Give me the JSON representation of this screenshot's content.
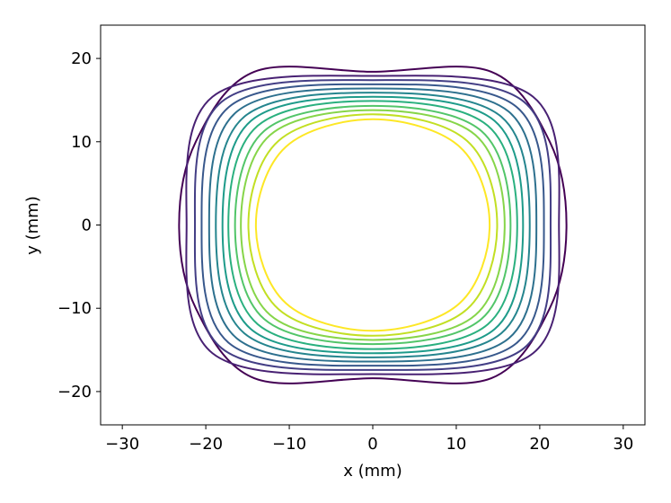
{
  "chart_data": {
    "type": "contour",
    "xlabel": "x (mm)",
    "ylabel": "y (mm)",
    "xlim": [
      -32.6,
      32.6
    ],
    "ylim": [
      -24,
      24
    ],
    "xticks": [
      {
        "value": -30,
        "label": "−30"
      },
      {
        "value": -20,
        "label": "−20"
      },
      {
        "value": -10,
        "label": "−10"
      },
      0,
      10,
      20,
      30
    ],
    "yticks": [
      {
        "value": -20,
        "label": "−20"
      },
      {
        "value": -10,
        "label": "−10"
      },
      0,
      10,
      20
    ],
    "series": [
      {
        "color": "#440154",
        "x": [
          23.2,
          21.2,
          14.2,
          0,
          -14.2,
          -21.2,
          -23.2,
          -21.2,
          -14.2,
          0,
          14.2,
          21.2
        ],
        "y": [
          0,
          10,
          18.4,
          18.4,
          18.4,
          10,
          0,
          -10,
          -18.4,
          -18.4,
          -18.4,
          -10
        ]
      },
      {
        "color": "#482173",
        "x": [
          22.3,
          19.2,
          0,
          -19.2,
          -22.3,
          -19.2,
          0,
          19.2
        ],
        "y": [
          0,
          15.4,
          17.9,
          15.4,
          0,
          -15.4,
          -17.9,
          -15.4
        ]
      },
      {
        "color": "#433e85",
        "x": [
          21.3,
          18.1,
          0,
          -18.1,
          -21.3,
          -18.1,
          0,
          18.1
        ],
        "y": [
          0,
          14.8,
          17.4,
          14.8,
          0,
          -14.8,
          -17.4,
          -14.8
        ]
      },
      {
        "color": "#38588c",
        "x": [
          20.5,
          17.2,
          0,
          -17.2,
          -20.5,
          -17.2,
          0,
          17.2
        ],
        "y": [
          0,
          14.2,
          16.9,
          14.2,
          0,
          -14.2,
          -16.9,
          -14.2
        ]
      },
      {
        "color": "#2d708e",
        "x": [
          19.6,
          16.3,
          0,
          -16.3,
          -19.6,
          -16.3,
          0,
          16.3
        ],
        "y": [
          0,
          13.6,
          16.4,
          13.6,
          0,
          -13.6,
          -16.4,
          -13.6
        ]
      },
      {
        "color": "#25858e",
        "x": [
          18.8,
          15.4,
          0,
          -15.4,
          -18.8,
          -15.4,
          0,
          15.4
        ],
        "y": [
          0,
          13.0,
          15.9,
          13.0,
          0,
          -13.0,
          -15.9,
          -13.0
        ]
      },
      {
        "color": "#1e9b8a",
        "x": [
          18.0,
          14.6,
          0,
          -14.6,
          -18.0,
          -14.6,
          0,
          14.6
        ],
        "y": [
          0,
          12.5,
          15.4,
          12.5,
          0,
          -12.5,
          -15.4,
          -12.5
        ]
      },
      {
        "color": "#2ab07f",
        "x": [
          17.3,
          13.8,
          0,
          -13.8,
          -17.3,
          -13.8,
          0,
          13.8
        ],
        "y": [
          0,
          11.9,
          14.9,
          11.9,
          0,
          -11.9,
          -14.9,
          -11.9
        ]
      },
      {
        "color": "#52c569",
        "x": [
          16.5,
          13.0,
          0,
          -13.0,
          -16.5,
          -13.0,
          0,
          13.0
        ],
        "y": [
          0,
          11.3,
          14.3,
          11.3,
          0,
          -11.3,
          -14.3,
          -11.3
        ]
      },
      {
        "color": "#86d549",
        "x": [
          15.8,
          12.3,
          0,
          -12.3,
          -15.8,
          -12.3,
          0,
          12.3
        ],
        "y": [
          0,
          10.8,
          13.8,
          10.8,
          0,
          -10.8,
          -13.8,
          -10.8
        ]
      },
      {
        "color": "#c2df23",
        "x": [
          14.9,
          11.3,
          0,
          -11.3,
          -14.9,
          -11.3,
          0,
          11.3
        ],
        "y": [
          0,
          10.1,
          13.3,
          10.1,
          0,
          -10.1,
          -13.3,
          -10.1
        ]
      },
      {
        "color": "#fde725",
        "x": [
          14.0,
          10.4,
          0,
          -10.4,
          -14.0,
          -10.4,
          0,
          10.4
        ],
        "y": [
          0,
          9.4,
          12.7,
          9.4,
          0,
          -9.4,
          -12.7,
          -9.4
        ]
      }
    ]
  }
}
